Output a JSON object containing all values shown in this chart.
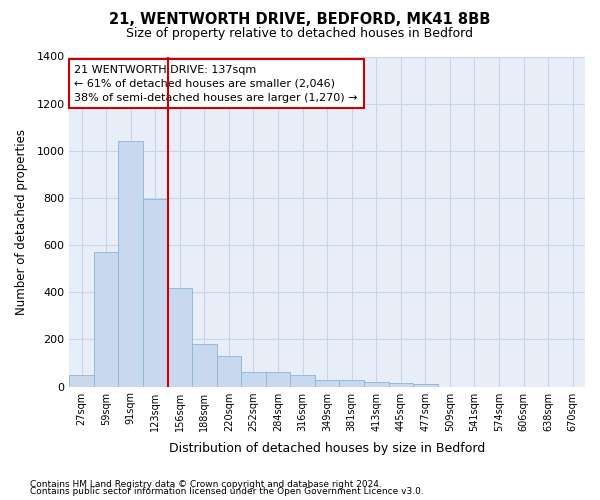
{
  "title": "21, WENTWORTH DRIVE, BEDFORD, MK41 8BB",
  "subtitle": "Size of property relative to detached houses in Bedford",
  "xlabel": "Distribution of detached houses by size in Bedford",
  "ylabel": "Number of detached properties",
  "categories": [
    "27sqm",
    "59sqm",
    "91sqm",
    "123sqm",
    "156sqm",
    "188sqm",
    "220sqm",
    "252sqm",
    "284sqm",
    "316sqm",
    "349sqm",
    "381sqm",
    "413sqm",
    "445sqm",
    "477sqm",
    "509sqm",
    "541sqm",
    "574sqm",
    "606sqm",
    "638sqm",
    "670sqm"
  ],
  "values": [
    47,
    572,
    1040,
    795,
    420,
    180,
    130,
    60,
    60,
    47,
    27,
    27,
    20,
    13,
    10,
    0,
    0,
    0,
    0,
    0,
    0
  ],
  "bar_color": "#c8d8ee",
  "bar_edge_color": "#8ab4d8",
  "marker_line_color": "#cc0000",
  "annotation_box_edge_color": "#cc0000",
  "annotation_box_face_color": "#ffffff",
  "marker_label": "21 WENTWORTH DRIVE: 137sqm",
  "annotation_line1": "← 61% of detached houses are smaller (2,046)",
  "annotation_line2": "38% of semi-detached houses are larger (1,270) →",
  "ylim": [
    0,
    1400
  ],
  "yticks": [
    0,
    200,
    400,
    600,
    800,
    1000,
    1200,
    1400
  ],
  "grid_color": "#c8d4e8",
  "bg_color": "#e8eef8",
  "footnote1": "Contains HM Land Registry data © Crown copyright and database right 2024.",
  "footnote2": "Contains public sector information licensed under the Open Government Licence v3.0."
}
